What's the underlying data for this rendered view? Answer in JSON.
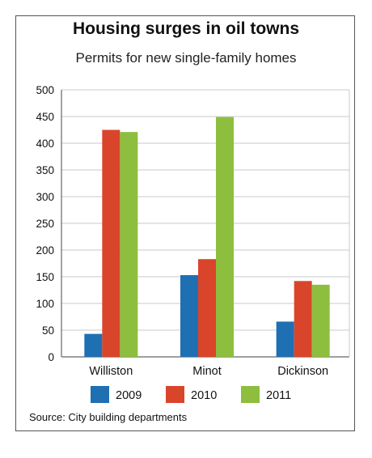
{
  "chart_data": {
    "type": "bar",
    "title": "Housing surges in oil towns",
    "subtitle": "Permits for new single-family homes",
    "categories": [
      "Williston",
      "Minot",
      "Dickinson"
    ],
    "series": [
      {
        "name": "2009",
        "color": "#1f6fb3",
        "values": [
          43,
          153,
          66
        ]
      },
      {
        "name": "2010",
        "color": "#d9452b",
        "values": [
          425,
          183,
          142
        ]
      },
      {
        "name": "2011",
        "color": "#8dbe3d",
        "values": [
          421,
          449,
          135
        ]
      }
    ],
    "yticks": [
      0,
      50,
      100,
      150,
      200,
      250,
      300,
      350,
      400,
      450,
      500
    ],
    "ylim": [
      0,
      500
    ],
    "grid": true,
    "legend": "bottom",
    "source": "Source: City building departments"
  }
}
